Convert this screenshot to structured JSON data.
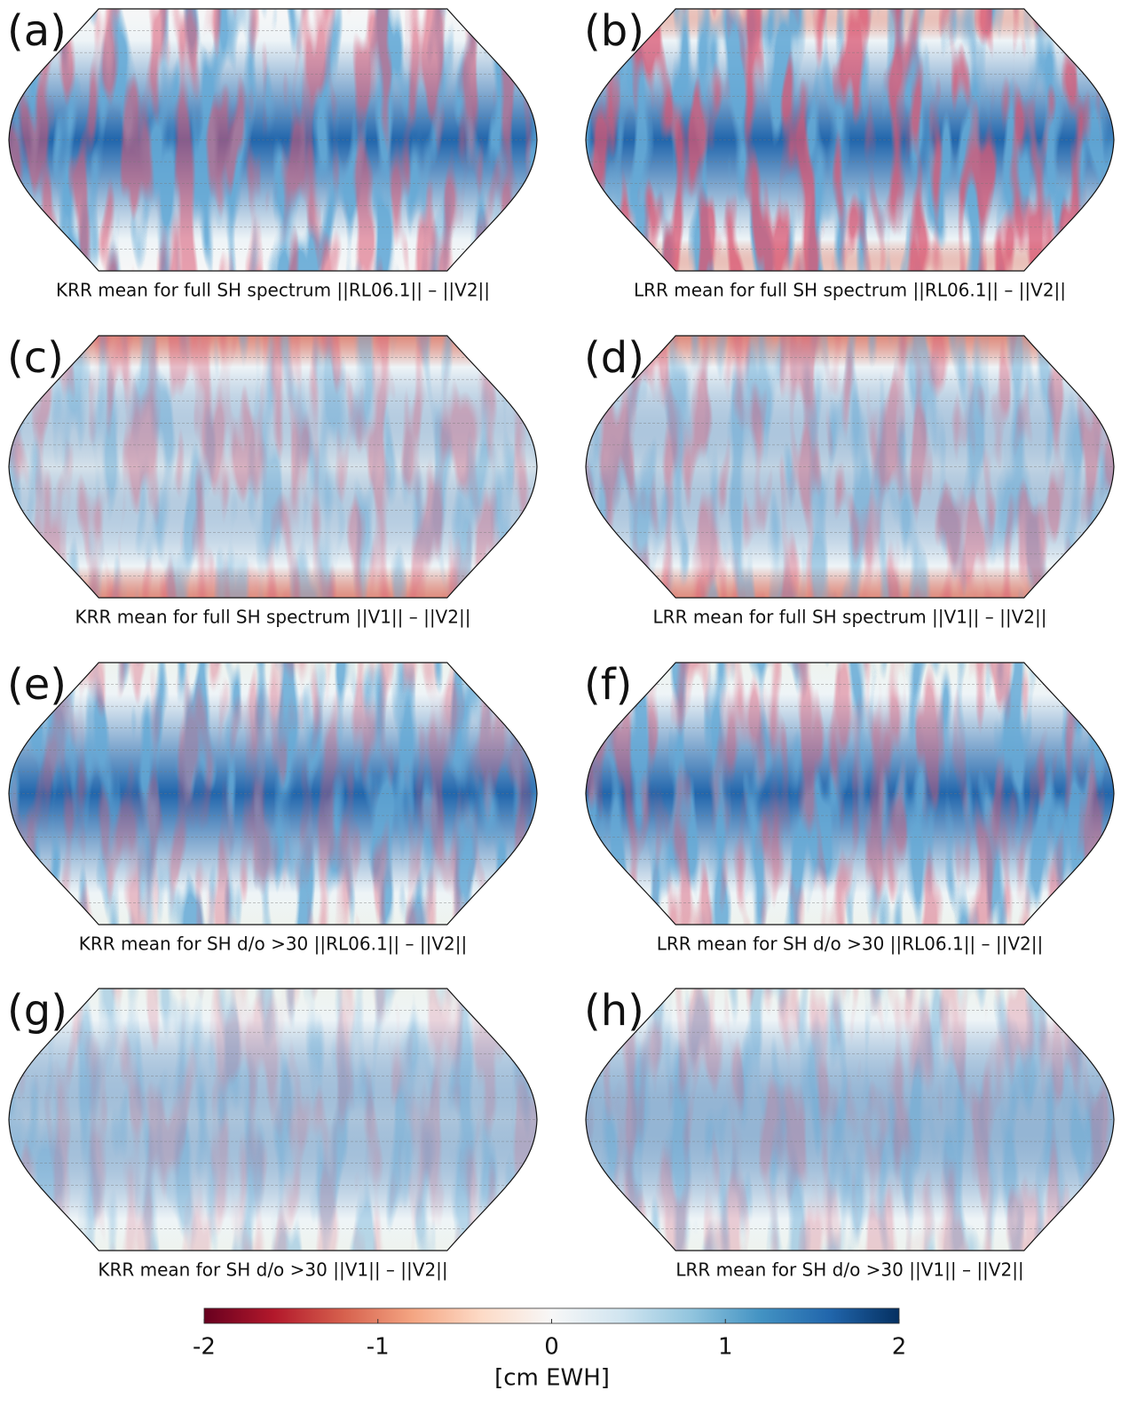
{
  "panels": [
    {
      "label": "(a)",
      "caption": "KRR mean for full SH spectrum ||RL06.1|| – ||V2||"
    },
    {
      "label": "(b)",
      "caption": "LRR mean for full SH spectrum ||RL06.1|| – ||V2||"
    },
    {
      "label": "(c)",
      "caption": "KRR mean for full SH spectrum ||V1|| – ||V2||"
    },
    {
      "label": "(d)",
      "caption": "LRR mean for full SH spectrum ||V1|| – ||V2||"
    },
    {
      "label": "(e)",
      "caption": "KRR mean for SH d/o >30 ||RL06.1|| – ||V2||"
    },
    {
      "label": "(f)",
      "caption": "LRR mean for SH d/o >30 ||RL06.1|| – ||V2||"
    },
    {
      "label": "(g)",
      "caption": "KRR mean for SH d/o >30 ||V1|| – ||V2||"
    },
    {
      "label": "(h)",
      "caption": "LRR mean for SH d/o >30 ||V1|| – ||V2||"
    }
  ],
  "colorbar": {
    "lim": [
      -2,
      2
    ],
    "ticks": [
      -2,
      -1,
      0,
      1,
      2
    ],
    "label": "[cm EWH]",
    "colors": [
      "#67001f",
      "#b2182b",
      "#d6604d",
      "#f4a582",
      "#fddbc7",
      "#f7f7f7",
      "#d1e5f0",
      "#92c5de",
      "#4393c3",
      "#2166ac",
      "#053061"
    ]
  }
}
